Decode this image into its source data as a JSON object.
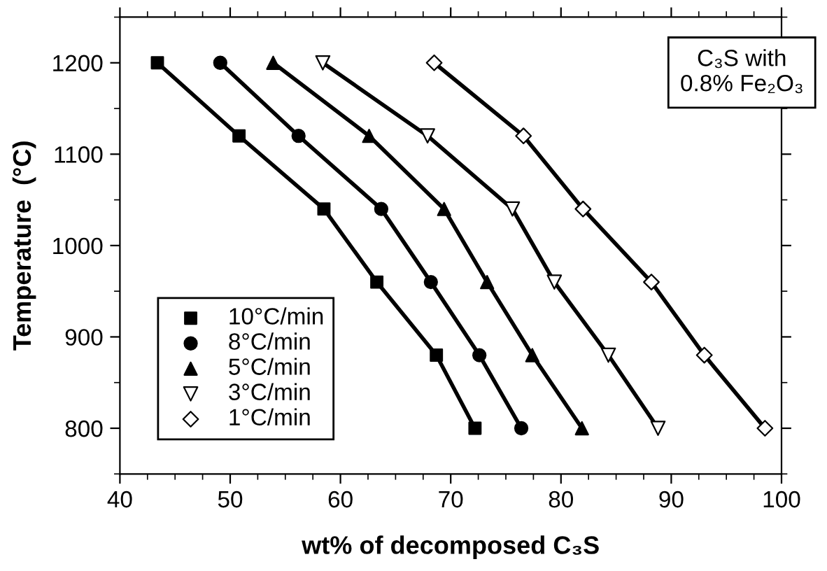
{
  "chart_data": {
    "type": "line",
    "xlabel": "wt% of decomposed C₃S",
    "ylabel": "Temperature  (°C)",
    "annotations": [
      "C₃S with\n0.8% Fe₂O₃"
    ],
    "xlim": [
      40,
      100
    ],
    "xticks": [
      40,
      50,
      60,
      70,
      80,
      90,
      100
    ],
    "ylim": [
      750,
      1250
    ],
    "yticks": [
      800,
      900,
      1000,
      1100,
      1200
    ],
    "grid": false,
    "legend": "bottom left",
    "line_style": "solid",
    "series": [
      {
        "name": "10°C/min",
        "color": "#000000",
        "marker": "square",
        "x": [
          43.4,
          50.8,
          58.5,
          63.3,
          68.7,
          72.2
        ],
        "values": [
          1200,
          1120,
          1040,
          960,
          880,
          800
        ]
      },
      {
        "name": "8°C/min",
        "color": "#000000",
        "marker": "circle",
        "x": [
          49.1,
          56.2,
          63.7,
          68.2,
          72.6,
          76.4
        ],
        "values": [
          1200,
          1120,
          1040,
          960,
          880,
          800
        ]
      },
      {
        "name": "5°C/min",
        "color": "#000000",
        "marker": "triangle",
        "x": [
          53.9,
          62.6,
          69.4,
          73.3,
          77.4,
          81.9
        ],
        "values": [
          1200,
          1120,
          1040,
          960,
          880,
          800
        ]
      },
      {
        "name": "3°C/min",
        "color": "#000000",
        "marker": "triangle-down-open",
        "x": [
          58.4,
          67.9,
          75.6,
          79.4,
          84.3,
          88.8
        ],
        "values": [
          1200,
          1120,
          1040,
          960,
          880,
          800
        ]
      },
      {
        "name": "1°C/min",
        "color": "#000000",
        "marker": "diamond-open",
        "x": [
          68.5,
          76.6,
          82.0,
          88.2,
          93.0,
          98.5
        ],
        "values": [
          1200,
          1120,
          1040,
          960,
          880,
          800
        ]
      }
    ]
  }
}
